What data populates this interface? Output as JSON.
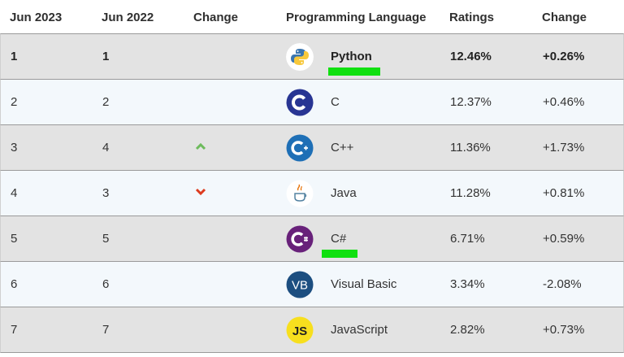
{
  "headers": {
    "rank_2023": "Jun 2023",
    "rank_2022": "Jun 2022",
    "change": "Change",
    "language": "Programming Language",
    "ratings": "Ratings",
    "ratings_change": "Change"
  },
  "rows": [
    {
      "rank_2023": "1",
      "rank_2022": "1",
      "language": "Python",
      "ratings": "12.46%",
      "change": "+0.26%",
      "icon": "python-icon",
      "trend": "none"
    },
    {
      "rank_2023": "2",
      "rank_2022": "2",
      "language": "C",
      "ratings": "12.37%",
      "change": "+0.46%",
      "icon": "c-icon",
      "trend": "none"
    },
    {
      "rank_2023": "3",
      "rank_2022": "4",
      "language": "C++",
      "ratings": "11.36%",
      "change": "+1.73%",
      "icon": "cpp-icon",
      "trend": "up"
    },
    {
      "rank_2023": "4",
      "rank_2022": "3",
      "language": "Java",
      "ratings": "11.28%",
      "change": "+0.81%",
      "icon": "java-icon",
      "trend": "down"
    },
    {
      "rank_2023": "5",
      "rank_2022": "5",
      "language": "C#",
      "ratings": "6.71%",
      "change": "+0.59%",
      "icon": "csharp-icon",
      "trend": "none"
    },
    {
      "rank_2023": "6",
      "rank_2022": "6",
      "language": "Visual Basic",
      "ratings": "3.34%",
      "change": "-2.08%",
      "icon": "vb-icon",
      "trend": "none"
    },
    {
      "rank_2023": "7",
      "rank_2022": "7",
      "language": "JavaScript",
      "ratings": "2.82%",
      "change": "+0.73%",
      "icon": "javascript-icon",
      "trend": "none"
    }
  ],
  "icon_text": {
    "vb": "VB",
    "js": "JS"
  },
  "colors": {
    "row_gray": "#e3e3e3",
    "row_light": "#f3f8fc",
    "up": "#6dbb5c",
    "down": "#dd3b1f",
    "marker": "#10e010"
  }
}
